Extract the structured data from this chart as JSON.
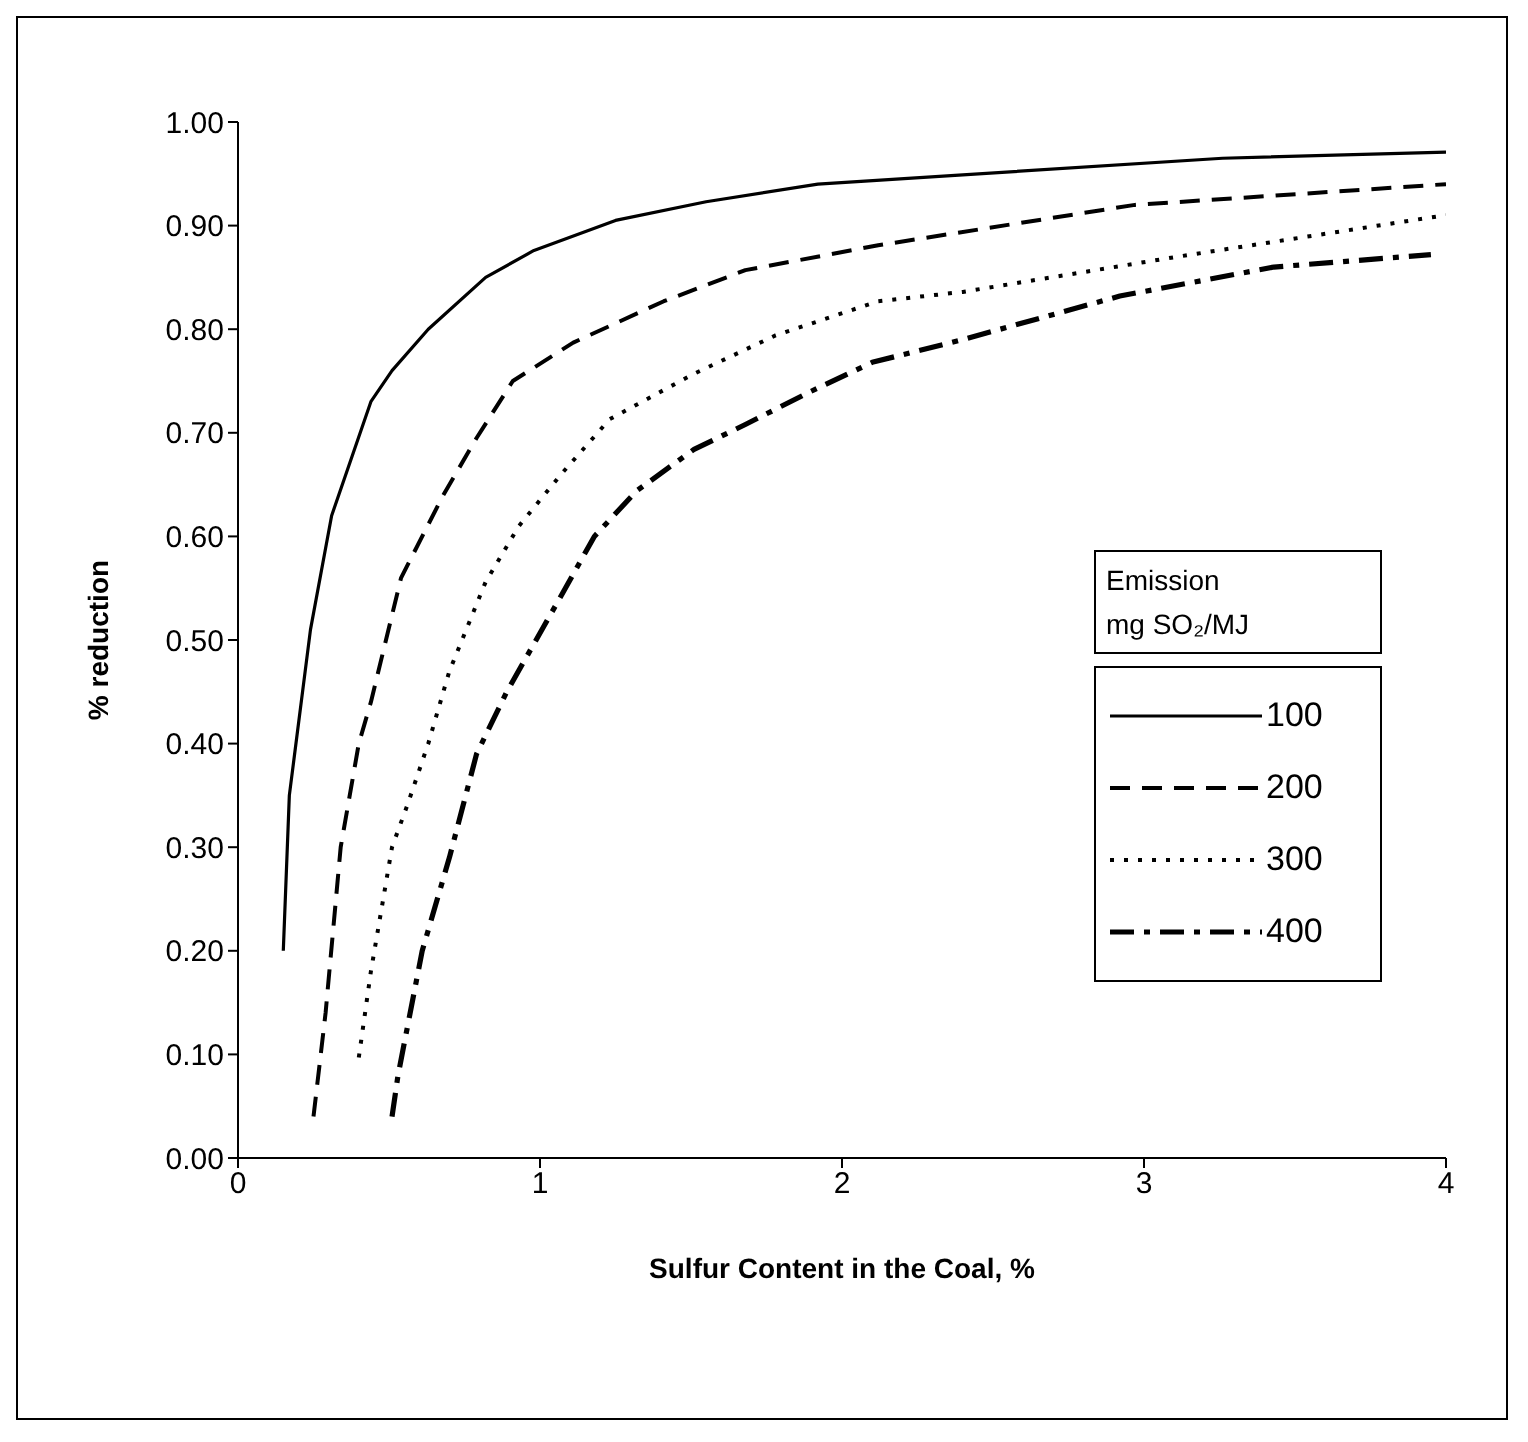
{
  "chart_data": {
    "type": "line",
    "xlabel": "Sulfur Content in the Coal, %",
    "ylabel": "% reduction",
    "legend_title": "Emission\nmg SO₂/MJ",
    "legend": "right",
    "grid": false,
    "marker": "none",
    "xlim": [
      0,
      4
    ],
    "xticks": [
      0,
      1,
      2,
      3,
      4
    ],
    "ylim": [
      0,
      1
    ],
    "yticks": [
      {
        "value": 0,
        "label": "0.00"
      },
      {
        "value": 0.1,
        "label": "0.10"
      },
      {
        "value": 0.2,
        "label": "0.20"
      },
      {
        "value": 0.3,
        "label": "0.30"
      },
      {
        "value": 0.4,
        "label": "0.40"
      },
      {
        "value": 0.5,
        "label": "0.50"
      },
      {
        "value": 0.6,
        "label": "0.60"
      },
      {
        "value": 0.7,
        "label": "0.70"
      },
      {
        "value": 0.8,
        "label": "0.80"
      },
      {
        "value": 0.9,
        "label": "0.90"
      },
      {
        "value": 1,
        "label": "1.00"
      }
    ],
    "series": [
      {
        "name": "100",
        "color": "#000000",
        "line_style": "solid",
        "x": [
          0.15,
          0.17,
          0.24,
          0.31,
          0.44,
          0.51,
          0.63,
          0.82,
          0.98,
          1.25,
          1.55,
          1.92,
          2.4,
          3.26,
          4.0
        ],
        "values": [
          0.2,
          0.35,
          0.51,
          0.62,
          0.73,
          0.76,
          0.8,
          0.85,
          0.876,
          0.905,
          0.923,
          0.94,
          0.949,
          0.965,
          0.971
        ]
      },
      {
        "name": "200",
        "color": "#000000",
        "line_style": "dashed",
        "x": [
          0.25,
          0.29,
          0.34,
          0.4,
          0.44,
          0.54,
          0.68,
          0.79,
          0.91,
          1.11,
          1.41,
          1.68,
          2.12,
          2.97,
          4.0
        ],
        "values": [
          0.04,
          0.14,
          0.3,
          0.4,
          0.44,
          0.56,
          0.64,
          0.695,
          0.75,
          0.787,
          0.827,
          0.857,
          0.881,
          0.92,
          0.94
        ]
      },
      {
        "name": "300",
        "color": "#000000",
        "line_style": "dotted",
        "x": [
          0.4,
          0.44,
          0.51,
          0.56,
          0.63,
          0.7,
          0.82,
          0.93,
          1.07,
          1.23,
          1.51,
          1.78,
          2.12,
          2.4,
          3.09,
          3.93,
          4.0
        ],
        "values": [
          0.097,
          0.18,
          0.3,
          0.34,
          0.4,
          0.47,
          0.556,
          0.61,
          0.66,
          0.713,
          0.757,
          0.794,
          0.827,
          0.836,
          0.869,
          0.907,
          0.91
        ]
      },
      {
        "name": "400",
        "color": "#000000",
        "line_style": "dashdot",
        "x": [
          0.51,
          0.53,
          0.61,
          0.7,
          0.79,
          0.89,
          1.09,
          1.18,
          1.32,
          1.51,
          1.68,
          1.89,
          2.1,
          2.4,
          2.92,
          3.43,
          3.95
        ],
        "values": [
          0.04,
          0.08,
          0.2,
          0.29,
          0.39,
          0.45,
          0.553,
          0.6,
          0.644,
          0.684,
          0.708,
          0.739,
          0.768,
          0.79,
          0.832,
          0.86,
          0.872
        ]
      }
    ]
  }
}
